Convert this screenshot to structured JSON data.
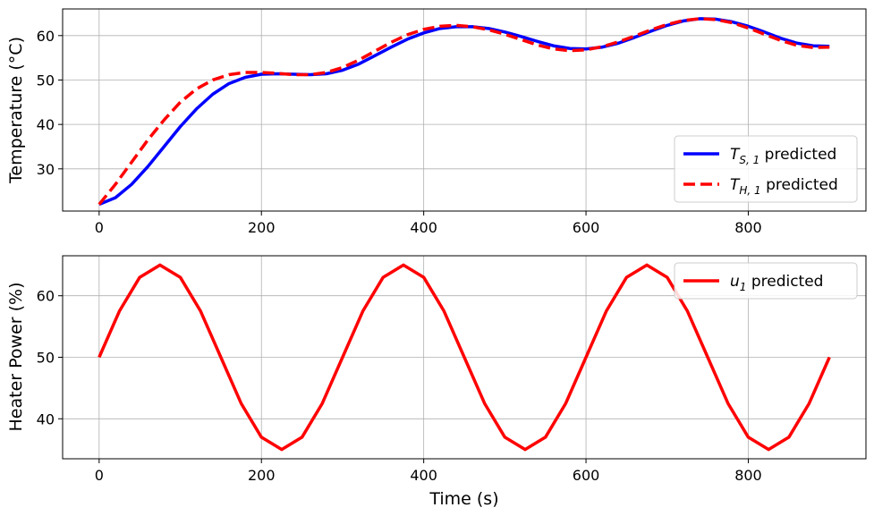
{
  "chart_data": [
    {
      "type": "line",
      "title": "",
      "xlabel": "",
      "ylabel": "Temperature (°C)",
      "xlim": [
        -45,
        945
      ],
      "ylim": [
        20.5,
        66
      ],
      "xticks": [
        0,
        200,
        400,
        600,
        800
      ],
      "yticks": [
        30,
        40,
        50,
        60
      ],
      "grid": true,
      "legend_position": "lower-right",
      "series": [
        {
          "name": "T_{S,1} predicted",
          "legend_main": "T",
          "legend_sub": "S, 1",
          "legend_rest": " predicted",
          "color": "#0000ff",
          "dash": "solid",
          "x": [
            0,
            20,
            40,
            60,
            80,
            100,
            120,
            140,
            160,
            180,
            200,
            220,
            240,
            260,
            280,
            300,
            320,
            340,
            360,
            380,
            400,
            420,
            440,
            460,
            480,
            500,
            520,
            540,
            560,
            580,
            600,
            620,
            640,
            660,
            680,
            700,
            720,
            740,
            760,
            780,
            800,
            820,
            840,
            860,
            880,
            900
          ],
          "y": [
            22.0,
            23.5,
            26.5,
            30.5,
            35.0,
            39.5,
            43.5,
            46.8,
            49.2,
            50.6,
            51.3,
            51.4,
            51.3,
            51.2,
            51.4,
            52.2,
            53.6,
            55.5,
            57.4,
            59.2,
            60.6,
            61.6,
            62.0,
            62.0,
            61.6,
            60.8,
            59.8,
            58.7,
            57.7,
            57.1,
            57.0,
            57.4,
            58.3,
            59.6,
            61.0,
            62.3,
            63.3,
            63.8,
            63.7,
            63.1,
            62.1,
            60.8,
            59.4,
            58.3,
            57.7,
            57.6
          ]
        },
        {
          "name": "T_{H,1} predicted",
          "legend_main": "T",
          "legend_sub": "H, 1",
          "legend_rest": " predicted",
          "color": "#ff0000",
          "dash": "dashed",
          "x": [
            0,
            20,
            40,
            60,
            80,
            100,
            120,
            140,
            160,
            180,
            200,
            220,
            240,
            260,
            280,
            300,
            320,
            340,
            360,
            380,
            400,
            420,
            440,
            460,
            480,
            500,
            520,
            540,
            560,
            580,
            600,
            620,
            640,
            660,
            680,
            700,
            720,
            740,
            760,
            780,
            800,
            820,
            840,
            860,
            880,
            900
          ],
          "y": [
            22.0,
            26.5,
            31.5,
            36.5,
            41.0,
            45.0,
            48.0,
            50.0,
            51.2,
            51.7,
            51.7,
            51.5,
            51.2,
            51.2,
            51.7,
            52.8,
            54.5,
            56.5,
            58.5,
            60.2,
            61.4,
            62.1,
            62.3,
            62.0,
            61.3,
            60.3,
            59.1,
            57.9,
            57.0,
            56.6,
            56.8,
            57.5,
            58.6,
            59.9,
            61.3,
            62.5,
            63.4,
            63.8,
            63.6,
            62.9,
            61.7,
            60.3,
            58.9,
            57.8,
            57.3,
            57.4
          ]
        }
      ]
    },
    {
      "type": "line",
      "title": "",
      "xlabel": "Time (s)",
      "ylabel": "Heater Power (%)",
      "xlim": [
        -45,
        945
      ],
      "ylim": [
        33.5,
        66.5
      ],
      "xticks": [
        0,
        200,
        400,
        600,
        800
      ],
      "yticks": [
        40,
        50,
        60
      ],
      "grid": true,
      "legend_position": "upper-right",
      "series": [
        {
          "name": "u_1 predicted",
          "legend_main": "u",
          "legend_sub": "1",
          "legend_rest": " predicted",
          "color": "#ff0000",
          "dash": "solid",
          "x": [
            0,
            25,
            50,
            75,
            100,
            125,
            150,
            175,
            200,
            225,
            250,
            275,
            300,
            325,
            350,
            375,
            400,
            425,
            450,
            475,
            500,
            525,
            550,
            575,
            600,
            625,
            650,
            675,
            700,
            725,
            750,
            775,
            800,
            825,
            850,
            875,
            900
          ],
          "y": [
            50.0,
            57.5,
            63.0,
            65.0,
            63.0,
            57.5,
            50.0,
            42.5,
            37.0,
            35.0,
            37.0,
            42.5,
            50.0,
            57.5,
            63.0,
            65.0,
            63.0,
            57.5,
            50.0,
            42.5,
            37.0,
            35.0,
            37.0,
            42.5,
            50.0,
            57.5,
            63.0,
            65.0,
            63.0,
            57.5,
            50.0,
            42.5,
            37.0,
            35.0,
            37.0,
            42.5,
            50.0
          ]
        }
      ]
    }
  ]
}
